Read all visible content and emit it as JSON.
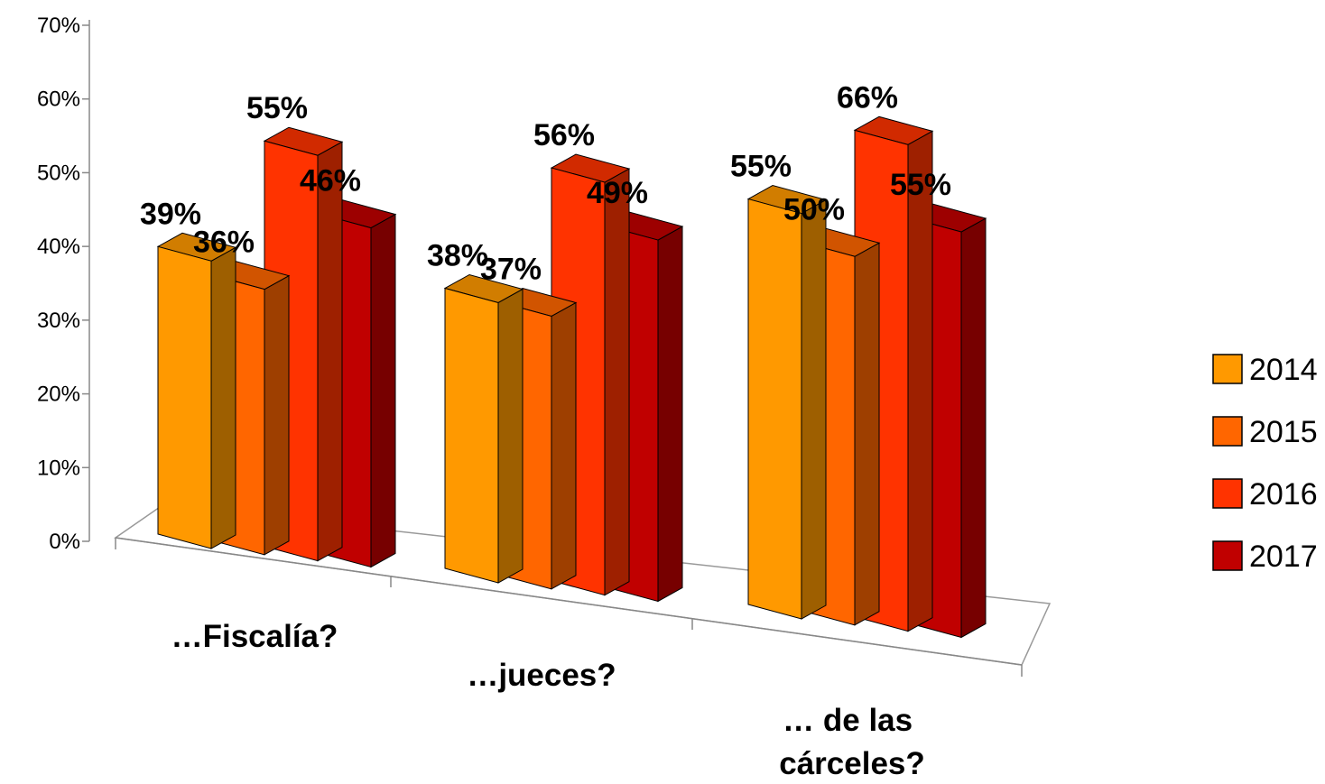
{
  "chart_data": {
    "type": "bar",
    "title": "",
    "xlabel": "",
    "ylabel": "",
    "ylim": [
      0,
      0.7
    ],
    "y_ticks": [
      "0%",
      "10%",
      "20%",
      "30%",
      "40%",
      "50%",
      "60%",
      "70%"
    ],
    "categories": [
      "…Fiscalía?",
      "…jueces?",
      "… de las cárceles?"
    ],
    "series": [
      {
        "name": "2014",
        "color": "#FF9900",
        "values": [
          0.39,
          0.38,
          0.55
        ],
        "labels": [
          "39%",
          "38%",
          "55%"
        ]
      },
      {
        "name": "2015",
        "color": "#FF6600",
        "values": [
          0.36,
          0.37,
          0.5
        ],
        "labels": [
          "36%",
          "37%",
          "50%"
        ]
      },
      {
        "name": "2016",
        "color": "#FF3300",
        "values": [
          0.55,
          0.56,
          0.66
        ],
        "labels": [
          "55%",
          "56%",
          "66%"
        ]
      },
      {
        "name": "2017",
        "color": "#C00000",
        "values": [
          0.46,
          0.49,
          0.55
        ],
        "labels": [
          "46%",
          "49%",
          "55%"
        ]
      }
    ],
    "legend_position": "right",
    "grid": false,
    "style": "3d-clustered-column"
  }
}
